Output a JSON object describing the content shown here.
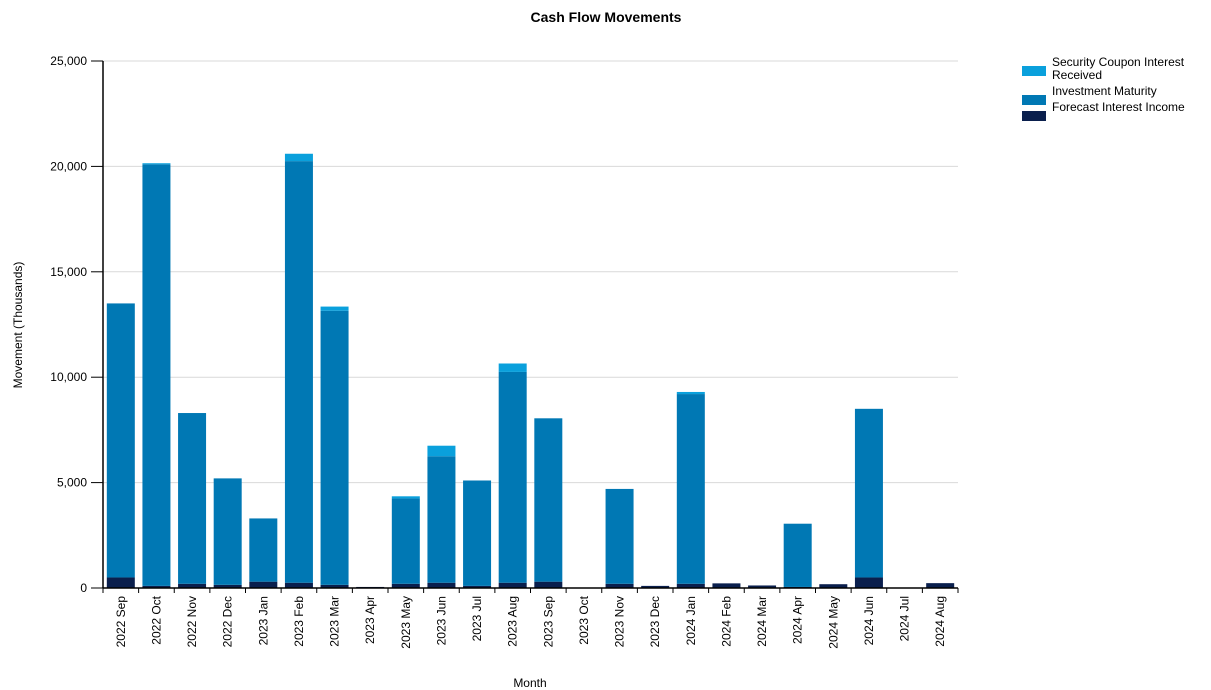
{
  "chart_data": {
    "type": "bar",
    "stacked": true,
    "title": "Cash Flow Movements",
    "xlabel": "Month",
    "ylabel": "Movement (Thousands)",
    "ylim": [
      0,
      25000
    ],
    "yticks": [
      0,
      5000,
      10000,
      15000,
      20000,
      25000
    ],
    "ytick_labels": [
      "0",
      "5,000",
      "10,000",
      "15,000",
      "20,000",
      "25,000"
    ],
    "grid": "horizontal",
    "legend_position": "top-right",
    "categories": [
      "2022 Sep",
      "2022 Oct",
      "2022 Nov",
      "2022 Dec",
      "2023 Jan",
      "2023 Feb",
      "2023 Mar",
      "2023 Apr",
      "2023 May",
      "2023 Jun",
      "2023 Jul",
      "2023 Aug",
      "2023 Sep",
      "2023 Oct",
      "2023 Nov",
      "2023 Dec",
      "2024 Jan",
      "2024 Feb",
      "2024 Mar",
      "2024 Apr",
      "2024 May",
      "2024 Jun",
      "2024 Jul",
      "2024 Aug"
    ],
    "series": [
      {
        "name": "Forecast Interest Income",
        "color": "#0a1f4d",
        "values": [
          500,
          100,
          200,
          150,
          300,
          250,
          150,
          50,
          200,
          250,
          100,
          250,
          300,
          0,
          200,
          100,
          200,
          220,
          120,
          50,
          180,
          500,
          0,
          230
        ]
      },
      {
        "name": "Investment Maturity",
        "color": "#0078b4",
        "values": [
          13000,
          20000,
          8100,
          5050,
          3000,
          20000,
          13000,
          0,
          4050,
          6000,
          5000,
          10000,
          7750,
          0,
          4500,
          0,
          9000,
          0,
          0,
          3000,
          0,
          8000,
          0,
          0
        ]
      },
      {
        "name": "Security Coupon Interest Received",
        "color": "#0aa0dc",
        "values": [
          0,
          50,
          0,
          0,
          0,
          350,
          200,
          0,
          100,
          500,
          0,
          400,
          0,
          0,
          0,
          0,
          100,
          0,
          0,
          0,
          0,
          0,
          0,
          0
        ]
      }
    ],
    "legend": [
      "Security Coupon Interest Received",
      "Investment Maturity",
      "Forecast Interest Income"
    ],
    "legend_lines": [
      [
        "Security Coupon Interest",
        "Received"
      ],
      [
        "Investment Maturity"
      ],
      [
        "Forecast Interest Income"
      ]
    ]
  }
}
